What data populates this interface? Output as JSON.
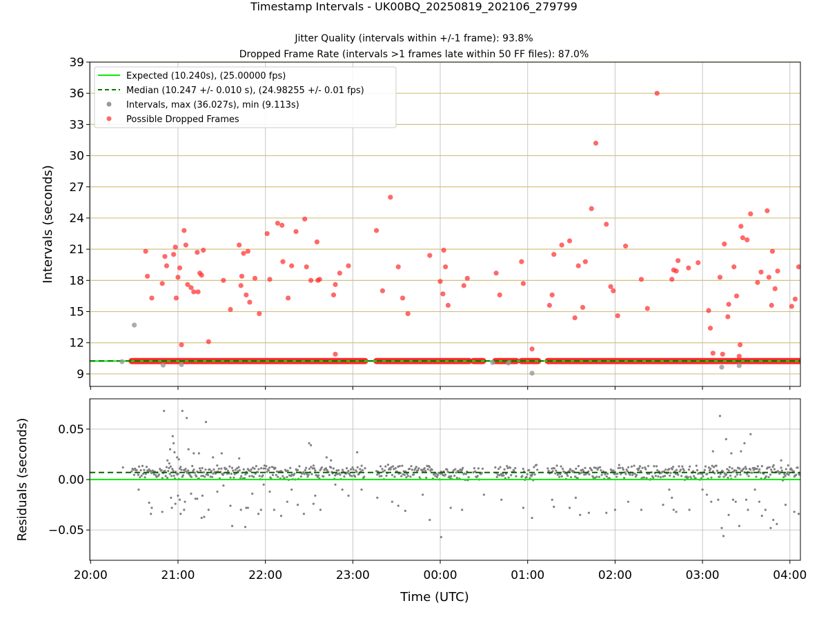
{
  "chart_data": [
    {
      "type": "scatter",
      "title": "Timestamp Intervals - UK00BQ_20250819_202106_279799",
      "subtitle": [
        "Jitter Quality (intervals within +/-1 frame): 93.8%",
        "Dropped Frame Rate (intervals >1 frames late within 50 FF files): 87.0%"
      ],
      "xlabel": "",
      "ylabel": "Intervals (seconds)",
      "xlim_hours": [
        -0.01,
        8.12
      ],
      "ylim": [
        7.8,
        39
      ],
      "yticks": [
        9,
        12,
        15,
        18,
        21,
        24,
        27,
        30,
        33,
        36,
        39
      ],
      "grid": true,
      "legend_position": "upper-left",
      "legend": [
        "Expected (10.240s), (25.00000 fps)",
        "Median (10.247 +/- 0.010 s), (24.98255 +/- 0.01 fps)",
        "Intervals, max (36.027s), min (9.113s)",
        "Possible Dropped Frames"
      ],
      "expected_line": 10.24,
      "median_line": 10.247,
      "colors": {
        "expected": "#00ee00",
        "median": "#007700",
        "intervals": "#999999",
        "dropped": "#ff2a2a",
        "threshold_grid": "#d4bf80"
      },
      "dense_band_segments_hours": [
        [
          0.47,
          3.14
        ],
        [
          3.27,
          4.33
        ],
        [
          4.38,
          4.49
        ],
        [
          4.63,
          4.87
        ],
        [
          4.93,
          5.12
        ],
        [
          5.23,
          8.12
        ]
      ],
      "gray_points": [
        [
          0.36,
          10.18
        ],
        [
          0.5,
          13.7
        ],
        [
          0.83,
          9.85
        ],
        [
          1.04,
          9.9
        ],
        [
          5.05,
          9.07
        ],
        [
          7.22,
          9.65
        ],
        [
          7.42,
          9.8
        ],
        [
          4.6,
          10.1
        ],
        [
          4.78,
          10.05
        ]
      ],
      "dropped_points": [
        [
          0.63,
          20.8
        ],
        [
          0.65,
          18.4
        ],
        [
          0.7,
          16.3
        ],
        [
          0.82,
          17.7
        ],
        [
          0.85,
          20.3
        ],
        [
          0.87,
          19.4
        ],
        [
          0.95,
          20.5
        ],
        [
          0.97,
          21.2
        ],
        [
          0.98,
          16.3
        ],
        [
          1.0,
          18.3
        ],
        [
          1.02,
          19.2
        ],
        [
          1.04,
          11.8
        ],
        [
          1.07,
          22.8
        ],
        [
          1.09,
          21.4
        ],
        [
          1.11,
          17.6
        ],
        [
          1.15,
          17.3
        ],
        [
          1.18,
          16.9
        ],
        [
          1.22,
          20.7
        ],
        [
          1.23,
          16.9
        ],
        [
          1.25,
          18.7
        ],
        [
          1.27,
          18.5
        ],
        [
          1.29,
          20.9
        ],
        [
          1.35,
          12.1
        ],
        [
          1.52,
          18.0
        ],
        [
          1.6,
          15.2
        ],
        [
          1.7,
          21.4
        ],
        [
          1.72,
          17.5
        ],
        [
          1.73,
          18.4
        ],
        [
          1.75,
          20.6
        ],
        [
          1.78,
          16.6
        ],
        [
          1.8,
          20.8
        ],
        [
          1.82,
          15.9
        ],
        [
          1.88,
          18.2
        ],
        [
          1.93,
          14.8
        ],
        [
          2.02,
          22.5
        ],
        [
          2.05,
          18.1
        ],
        [
          2.14,
          23.5
        ],
        [
          2.19,
          23.3
        ],
        [
          2.2,
          19.8
        ],
        [
          2.26,
          16.3
        ],
        [
          2.3,
          19.4
        ],
        [
          2.35,
          22.7
        ],
        [
          2.45,
          23.9
        ],
        [
          2.47,
          19.3
        ],
        [
          2.52,
          18.0
        ],
        [
          2.59,
          21.7
        ],
        [
          2.6,
          18.0
        ],
        [
          2.62,
          18.1
        ],
        [
          2.78,
          16.6
        ],
        [
          2.8,
          17.6
        ],
        [
          2.8,
          10.9
        ],
        [
          2.85,
          18.7
        ],
        [
          2.95,
          19.4
        ],
        [
          3.27,
          22.8
        ],
        [
          3.34,
          17.0
        ],
        [
          3.43,
          26.0
        ],
        [
          3.52,
          19.3
        ],
        [
          3.57,
          16.3
        ],
        [
          3.63,
          14.8
        ],
        [
          3.88,
          20.4
        ],
        [
          4.0,
          17.9
        ],
        [
          4.03,
          16.7
        ],
        [
          4.04,
          20.9
        ],
        [
          4.06,
          19.3
        ],
        [
          4.09,
          15.6
        ],
        [
          4.27,
          17.5
        ],
        [
          4.31,
          18.2
        ],
        [
          4.64,
          18.7
        ],
        [
          4.68,
          16.6
        ],
        [
          4.93,
          19.8
        ],
        [
          4.95,
          17.7
        ],
        [
          5.05,
          11.4
        ],
        [
          5.25,
          15.6
        ],
        [
          5.28,
          16.6
        ],
        [
          5.3,
          20.5
        ],
        [
          5.39,
          21.4
        ],
        [
          5.48,
          21.8
        ],
        [
          5.54,
          14.4
        ],
        [
          5.58,
          19.4
        ],
        [
          5.63,
          15.4
        ],
        [
          5.66,
          19.8
        ],
        [
          5.73,
          24.9
        ],
        [
          5.78,
          31.2
        ],
        [
          5.9,
          23.4
        ],
        [
          5.95,
          17.4
        ],
        [
          5.98,
          17.0
        ],
        [
          6.03,
          14.6
        ],
        [
          6.12,
          21.3
        ],
        [
          6.3,
          18.1
        ],
        [
          6.37,
          15.3
        ],
        [
          6.48,
          36.0
        ],
        [
          6.65,
          18.1
        ],
        [
          6.67,
          19.0
        ],
        [
          6.7,
          18.9
        ],
        [
          6.72,
          19.9
        ],
        [
          6.84,
          19.2
        ],
        [
          6.95,
          19.7
        ],
        [
          7.07,
          15.1
        ],
        [
          7.09,
          13.4
        ],
        [
          7.12,
          11.0
        ],
        [
          7.2,
          18.3
        ],
        [
          7.23,
          10.9
        ],
        [
          7.25,
          21.5
        ],
        [
          7.29,
          14.5
        ],
        [
          7.3,
          15.7
        ],
        [
          7.36,
          19.3
        ],
        [
          7.39,
          16.5
        ],
        [
          7.42,
          10.7
        ],
        [
          7.43,
          11.8
        ],
        [
          7.44,
          23.2
        ],
        [
          7.46,
          22.1
        ],
        [
          7.51,
          21.9
        ],
        [
          7.55,
          24.4
        ],
        [
          7.63,
          17.8
        ],
        [
          7.67,
          18.8
        ],
        [
          7.74,
          24.7
        ],
        [
          7.76,
          18.3
        ],
        [
          7.79,
          15.6
        ],
        [
          7.8,
          20.8
        ],
        [
          7.83,
          17.2
        ],
        [
          7.86,
          18.9
        ],
        [
          8.02,
          15.5
        ],
        [
          8.06,
          16.2
        ],
        [
          8.1,
          19.3
        ]
      ]
    },
    {
      "type": "scatter",
      "xlabel": "Time (UTC)",
      "ylabel": "Residuals (seconds)",
      "ylim": [
        -0.08,
        0.08
      ],
      "yticks": [
        0.05,
        0.0,
        -0.05
      ],
      "ytick_labels": [
        "0.05",
        "0.00",
        "−0.05"
      ],
      "xticks_hours": [
        0,
        1,
        2,
        3,
        4,
        5,
        6,
        7,
        8
      ],
      "xtick_labels": [
        "20:00",
        "21:00",
        "22:00",
        "23:00",
        "00:00",
        "01:00",
        "02:00",
        "03:00",
        "04:00"
      ],
      "grid": true,
      "zero_line": 0.0,
      "median_residual": 0.007,
      "colors": {
        "zero": "#00ee00",
        "median": "#006600",
        "points": "#808080"
      },
      "outlier_points": [
        [
          0.37,
          0.012
        ],
        [
          0.55,
          -0.01
        ],
        [
          0.67,
          -0.023
        ],
        [
          0.69,
          -0.034
        ],
        [
          0.7,
          -0.028
        ],
        [
          0.82,
          -0.032
        ],
        [
          0.84,
          0.068
        ],
        [
          0.88,
          0.019
        ],
        [
          0.9,
          0.016
        ],
        [
          0.91,
          0.03
        ],
        [
          0.92,
          -0.018
        ],
        [
          0.93,
          -0.028
        ],
        [
          0.94,
          0.043
        ],
        [
          0.95,
          0.036
        ],
        [
          0.96,
          0.027
        ],
        [
          0.97,
          -0.024
        ],
        [
          0.99,
          0.022
        ],
        [
          1.0,
          -0.016
        ],
        [
          1.01,
          0.02
        ],
        [
          1.02,
          -0.02
        ],
        [
          1.03,
          -0.034
        ],
        [
          1.05,
          0.068
        ],
        [
          1.07,
          -0.03
        ],
        [
          1.08,
          -0.022
        ],
        [
          1.1,
          0.061
        ],
        [
          1.12,
          0.03
        ],
        [
          1.15,
          -0.014
        ],
        [
          1.18,
          0.026
        ],
        [
          1.2,
          -0.019
        ],
        [
          1.22,
          -0.019
        ],
        [
          1.24,
          0.026
        ],
        [
          1.27,
          -0.038
        ],
        [
          1.28,
          -0.016
        ],
        [
          1.3,
          -0.037
        ],
        [
          1.32,
          0.057
        ],
        [
          1.35,
          -0.03
        ],
        [
          1.4,
          0.022
        ],
        [
          1.45,
          -0.012
        ],
        [
          1.5,
          0.026
        ],
        [
          1.52,
          -0.006
        ],
        [
          1.6,
          -0.026
        ],
        [
          1.62,
          -0.046
        ],
        [
          1.7,
          0.021
        ],
        [
          1.72,
          -0.03
        ],
        [
          1.77,
          -0.047
        ],
        [
          1.78,
          -0.028
        ],
        [
          1.8,
          -0.028
        ],
        [
          1.85,
          -0.014
        ],
        [
          1.92,
          -0.034
        ],
        [
          1.95,
          -0.03
        ],
        [
          1.98,
          -0.005
        ],
        [
          2.05,
          -0.012
        ],
        [
          2.1,
          -0.03
        ],
        [
          2.18,
          -0.036
        ],
        [
          2.25,
          -0.022
        ],
        [
          2.3,
          -0.01
        ],
        [
          2.37,
          -0.025
        ],
        [
          2.44,
          -0.034
        ],
        [
          2.5,
          0.036
        ],
        [
          2.52,
          0.034
        ],
        [
          2.55,
          -0.024
        ],
        [
          2.57,
          -0.016
        ],
        [
          2.63,
          -0.03
        ],
        [
          2.7,
          0.022
        ],
        [
          2.75,
          0.019
        ],
        [
          2.8,
          -0.005
        ],
        [
          2.88,
          -0.01
        ],
        [
          2.95,
          -0.016
        ],
        [
          3.05,
          0.027
        ],
        [
          3.1,
          -0.01
        ],
        [
          3.28,
          -0.018
        ],
        [
          3.45,
          -0.022
        ],
        [
          3.52,
          -0.026
        ],
        [
          3.6,
          -0.031
        ],
        [
          3.8,
          -0.015
        ],
        [
          3.88,
          -0.04
        ],
        [
          4.01,
          -0.057
        ],
        [
          4.12,
          -0.028
        ],
        [
          4.25,
          -0.03
        ],
        [
          4.5,
          -0.015
        ],
        [
          4.7,
          -0.02
        ],
        [
          4.95,
          -0.028
        ],
        [
          5.05,
          -0.038
        ],
        [
          5.28,
          -0.02
        ],
        [
          5.3,
          -0.027
        ],
        [
          5.48,
          -0.028
        ],
        [
          5.55,
          -0.018
        ],
        [
          5.6,
          -0.035
        ],
        [
          5.7,
          -0.033
        ],
        [
          5.9,
          -0.033
        ],
        [
          6.0,
          -0.03
        ],
        [
          6.15,
          -0.022
        ],
        [
          6.3,
          -0.03
        ],
        [
          6.55,
          -0.025
        ],
        [
          6.62,
          -0.01
        ],
        [
          6.65,
          -0.018
        ],
        [
          6.67,
          -0.03
        ],
        [
          6.7,
          -0.032
        ],
        [
          6.85,
          -0.03
        ],
        [
          7.0,
          -0.01
        ],
        [
          7.05,
          -0.015
        ],
        [
          7.1,
          -0.022
        ],
        [
          7.12,
          0.028
        ],
        [
          7.18,
          -0.02
        ],
        [
          7.2,
          0.063
        ],
        [
          7.22,
          -0.048
        ],
        [
          7.24,
          -0.056
        ],
        [
          7.27,
          0.04
        ],
        [
          7.3,
          -0.035
        ],
        [
          7.33,
          0.026
        ],
        [
          7.35,
          -0.02
        ],
        [
          7.38,
          -0.022
        ],
        [
          7.42,
          -0.046
        ],
        [
          7.44,
          0.028
        ],
        [
          7.48,
          0.036
        ],
        [
          7.52,
          -0.03
        ],
        [
          7.55,
          0.045
        ],
        [
          7.6,
          -0.01
        ],
        [
          7.65,
          -0.022
        ],
        [
          7.68,
          -0.036
        ],
        [
          7.72,
          -0.03
        ],
        [
          7.78,
          -0.048
        ],
        [
          7.81,
          -0.04
        ],
        [
          7.85,
          -0.044
        ],
        [
          7.95,
          -0.025
        ],
        [
          8.05,
          -0.032
        ],
        [
          8.1,
          -0.034
        ],
        [
          7.5,
          -0.02
        ],
        [
          7.9,
          0.019
        ],
        [
          7.98,
          0.014
        ]
      ]
    }
  ]
}
